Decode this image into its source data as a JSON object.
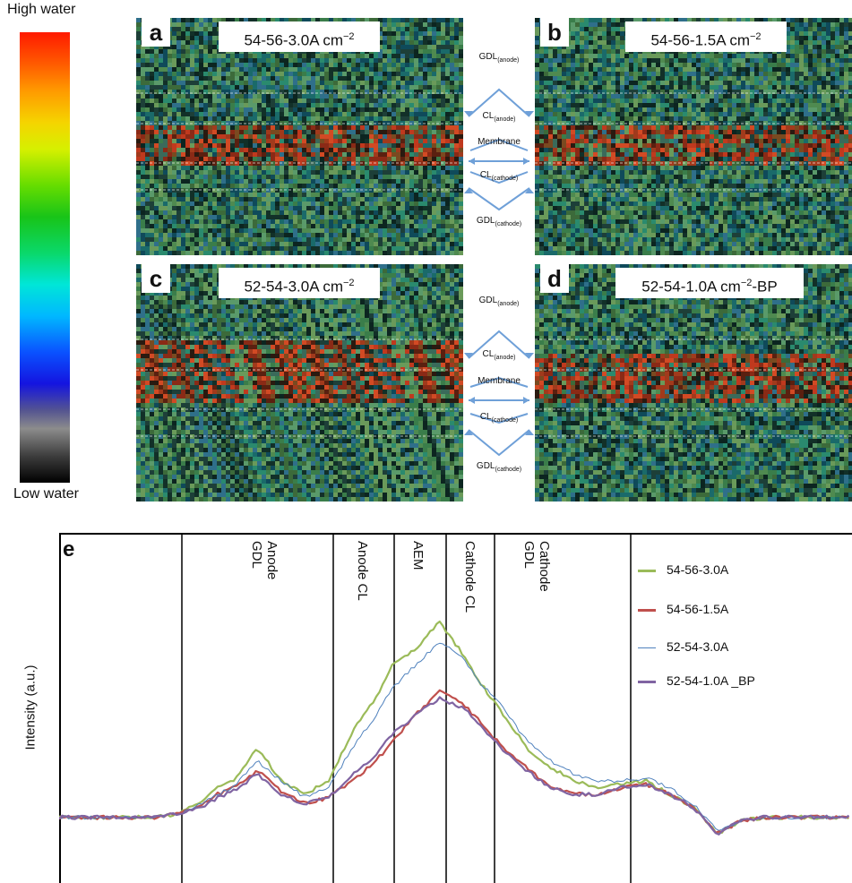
{
  "colorbar": {
    "top_label": "High water",
    "bottom_label": "Low water"
  },
  "panels": [
    {
      "letter": "a",
      "label": "54-56-3.0A cm",
      "sup": "−2",
      "suffix": ""
    },
    {
      "letter": "b",
      "label": "54-56-1.5A cm",
      "sup": "−2",
      "suffix": ""
    },
    {
      "letter": "c",
      "label": "52-54-3.0A cm",
      "sup": "−2",
      "suffix": ""
    },
    {
      "letter": "d",
      "label": "52-54-1.0A cm",
      "sup": "−2",
      "suffix": "-BP"
    }
  ],
  "layer_labels": {
    "gdl": "GDL",
    "cl": "CL",
    "anode": "(anode)",
    "cathode": "(cathode)",
    "membrane": "Membrane"
  },
  "chart_data": {
    "type": "line",
    "panel_letter": "e",
    "ylabel": "Intensity (a.u.)",
    "xlabel": "",
    "regions": [
      "Anode\nGDL",
      "Anode CL",
      "AEM",
      "Cathode CL",
      "Cathode\nGDL"
    ],
    "x": [
      0,
      4,
      8,
      12,
      15,
      18,
      20,
      22,
      25,
      28,
      31,
      34,
      37,
      40,
      42,
      45,
      48,
      51,
      53,
      56,
      59,
      62,
      65,
      68,
      71,
      74,
      77,
      80,
      83,
      86,
      89,
      92,
      95,
      98,
      100
    ],
    "series": [
      {
        "name": "54-56-3.0A",
        "color": "#9bbb59",
        "values": [
          -1,
          -1,
          -1,
          -1,
          0,
          4,
          8,
          10,
          20,
          10,
          6,
          10,
          25,
          35,
          45,
          50,
          58,
          48,
          40,
          30,
          20,
          14,
          10,
          8,
          9,
          10,
          6,
          2,
          -6,
          -2,
          -1,
          -1,
          -1,
          -1,
          -1
        ]
      },
      {
        "name": "54-56-1.5A",
        "color": "#c0504d",
        "values": [
          -1,
          -1,
          -1,
          -1,
          0,
          3,
          6,
          8,
          13,
          7,
          3,
          5,
          10,
          16,
          22,
          30,
          37,
          33,
          28,
          20,
          14,
          8,
          6,
          6,
          8,
          9,
          6,
          2,
          -6,
          -2,
          -1,
          -1,
          -1,
          -1,
          -1
        ]
      },
      {
        "name": "52-54-3.0A",
        "color": "#4f81bd",
        "values": [
          -1,
          -1,
          -1,
          -1,
          0,
          3,
          6,
          8,
          16,
          10,
          5,
          8,
          20,
          30,
          38,
          45,
          52,
          47,
          40,
          32,
          22,
          16,
          12,
          10,
          10,
          11,
          8,
          3,
          -5,
          -2,
          -1,
          -1,
          -1,
          -1,
          -1
        ]
      },
      {
        "name": "52-54-1.0A _BP",
        "color": "#8064a2",
        "values": [
          -1,
          -1,
          -1,
          -1,
          0,
          2,
          5,
          7,
          12,
          6,
          3,
          5,
          12,
          18,
          24,
          30,
          35,
          32,
          27,
          19,
          13,
          8,
          6,
          6,
          8,
          9,
          6,
          2,
          -6,
          -2,
          -1,
          -1,
          -1,
          -1,
          -1
        ]
      }
    ],
    "legend_position": "right"
  }
}
